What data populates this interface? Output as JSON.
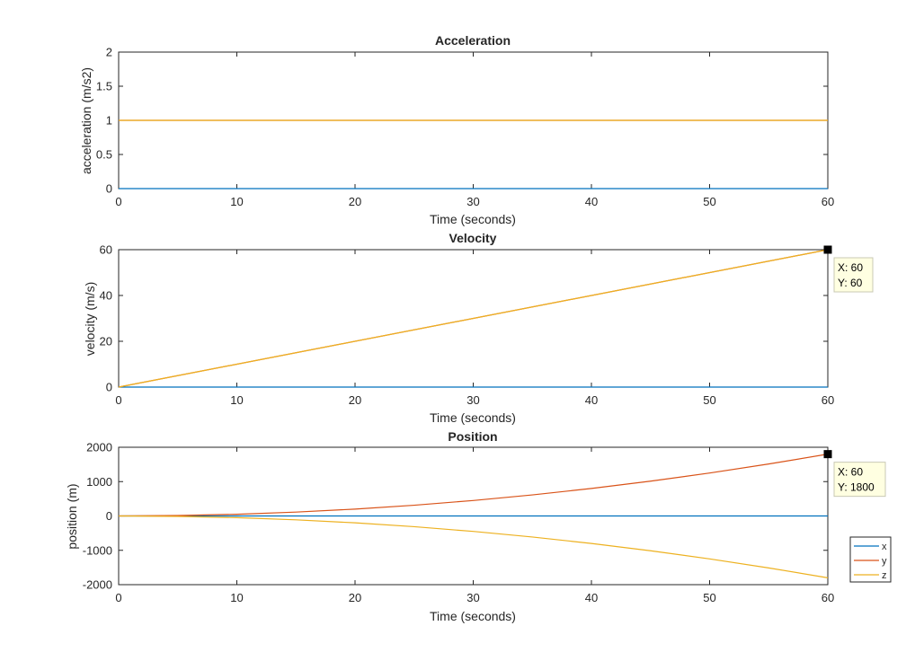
{
  "chart_data": [
    {
      "type": "line",
      "title": "Acceleration",
      "xlabel": "Time (seconds)",
      "ylabel": "acceleration (m/s2)",
      "xlim": [
        0,
        60
      ],
      "ylim": [
        0,
        2
      ],
      "xticks": [
        0,
        10,
        20,
        30,
        40,
        50,
        60
      ],
      "yticks": [
        0,
        0.5,
        1,
        1.5,
        2
      ],
      "grid": false,
      "series": [
        {
          "color": "#0072BD",
          "x": [
            0,
            60
          ],
          "y": [
            0,
            0
          ]
        },
        {
          "color": "#D95319",
          "x": [
            0,
            60
          ],
          "y": [
            1,
            1
          ]
        },
        {
          "color": "#EDB120",
          "x": [
            0,
            60
          ],
          "y": [
            1,
            1
          ]
        }
      ]
    },
    {
      "type": "line",
      "title": "Velocity",
      "xlabel": "Time (seconds)",
      "ylabel": "velocity (m/s)",
      "xlim": [
        0,
        60
      ],
      "ylim": [
        0,
        60
      ],
      "xticks": [
        0,
        10,
        20,
        30,
        40,
        50,
        60
      ],
      "yticks": [
        0,
        20,
        40,
        60
      ],
      "grid": false,
      "series": [
        {
          "color": "#0072BD",
          "x": [
            0,
            60
          ],
          "y": [
            0,
            0
          ]
        },
        {
          "color": "#D95319",
          "x": [
            0,
            60
          ],
          "y": [
            0,
            60
          ]
        },
        {
          "color": "#EDB120",
          "x": [
            0,
            60
          ],
          "y": [
            0,
            60
          ]
        }
      ],
      "datatip": {
        "x": 60,
        "y": 60,
        "lines": [
          "X: 60",
          "Y: 60"
        ]
      }
    },
    {
      "type": "line",
      "title": "Position",
      "xlabel": "Time (seconds)",
      "ylabel": "position (m)",
      "xlim": [
        0,
        60
      ],
      "ylim": [
        -2000,
        2000
      ],
      "xticks": [
        0,
        10,
        20,
        30,
        40,
        50,
        60
      ],
      "yticks": [
        -2000,
        -1000,
        0,
        1000,
        2000
      ],
      "grid": false,
      "series": [
        {
          "name": "x",
          "color": "#0072BD",
          "x": [
            0,
            60
          ],
          "y": [
            0,
            0
          ]
        },
        {
          "name": "y",
          "color": "#D95319",
          "x": [
            0,
            5,
            10,
            15,
            20,
            25,
            30,
            35,
            40,
            45,
            50,
            55,
            60
          ],
          "y": [
            0,
            12.5,
            50,
            112.5,
            200,
            312.5,
            450,
            612.5,
            800,
            1012.5,
            1250,
            1512.5,
            1800
          ]
        },
        {
          "name": "z",
          "color": "#EDB120",
          "x": [
            0,
            5,
            10,
            15,
            20,
            25,
            30,
            35,
            40,
            45,
            50,
            55,
            60
          ],
          "y": [
            0,
            -12.5,
            -50,
            -112.5,
            -200,
            -312.5,
            -450,
            -612.5,
            -800,
            -1012.5,
            -1250,
            -1512.5,
            -1800
          ]
        }
      ],
      "datatip": {
        "x": 60,
        "y": 1800,
        "lines": [
          "X: 60",
          "Y: 1800"
        ]
      },
      "legend": {
        "placement": "outside-bottom-right",
        "entries": [
          "x",
          "y",
          "z"
        ]
      }
    }
  ]
}
